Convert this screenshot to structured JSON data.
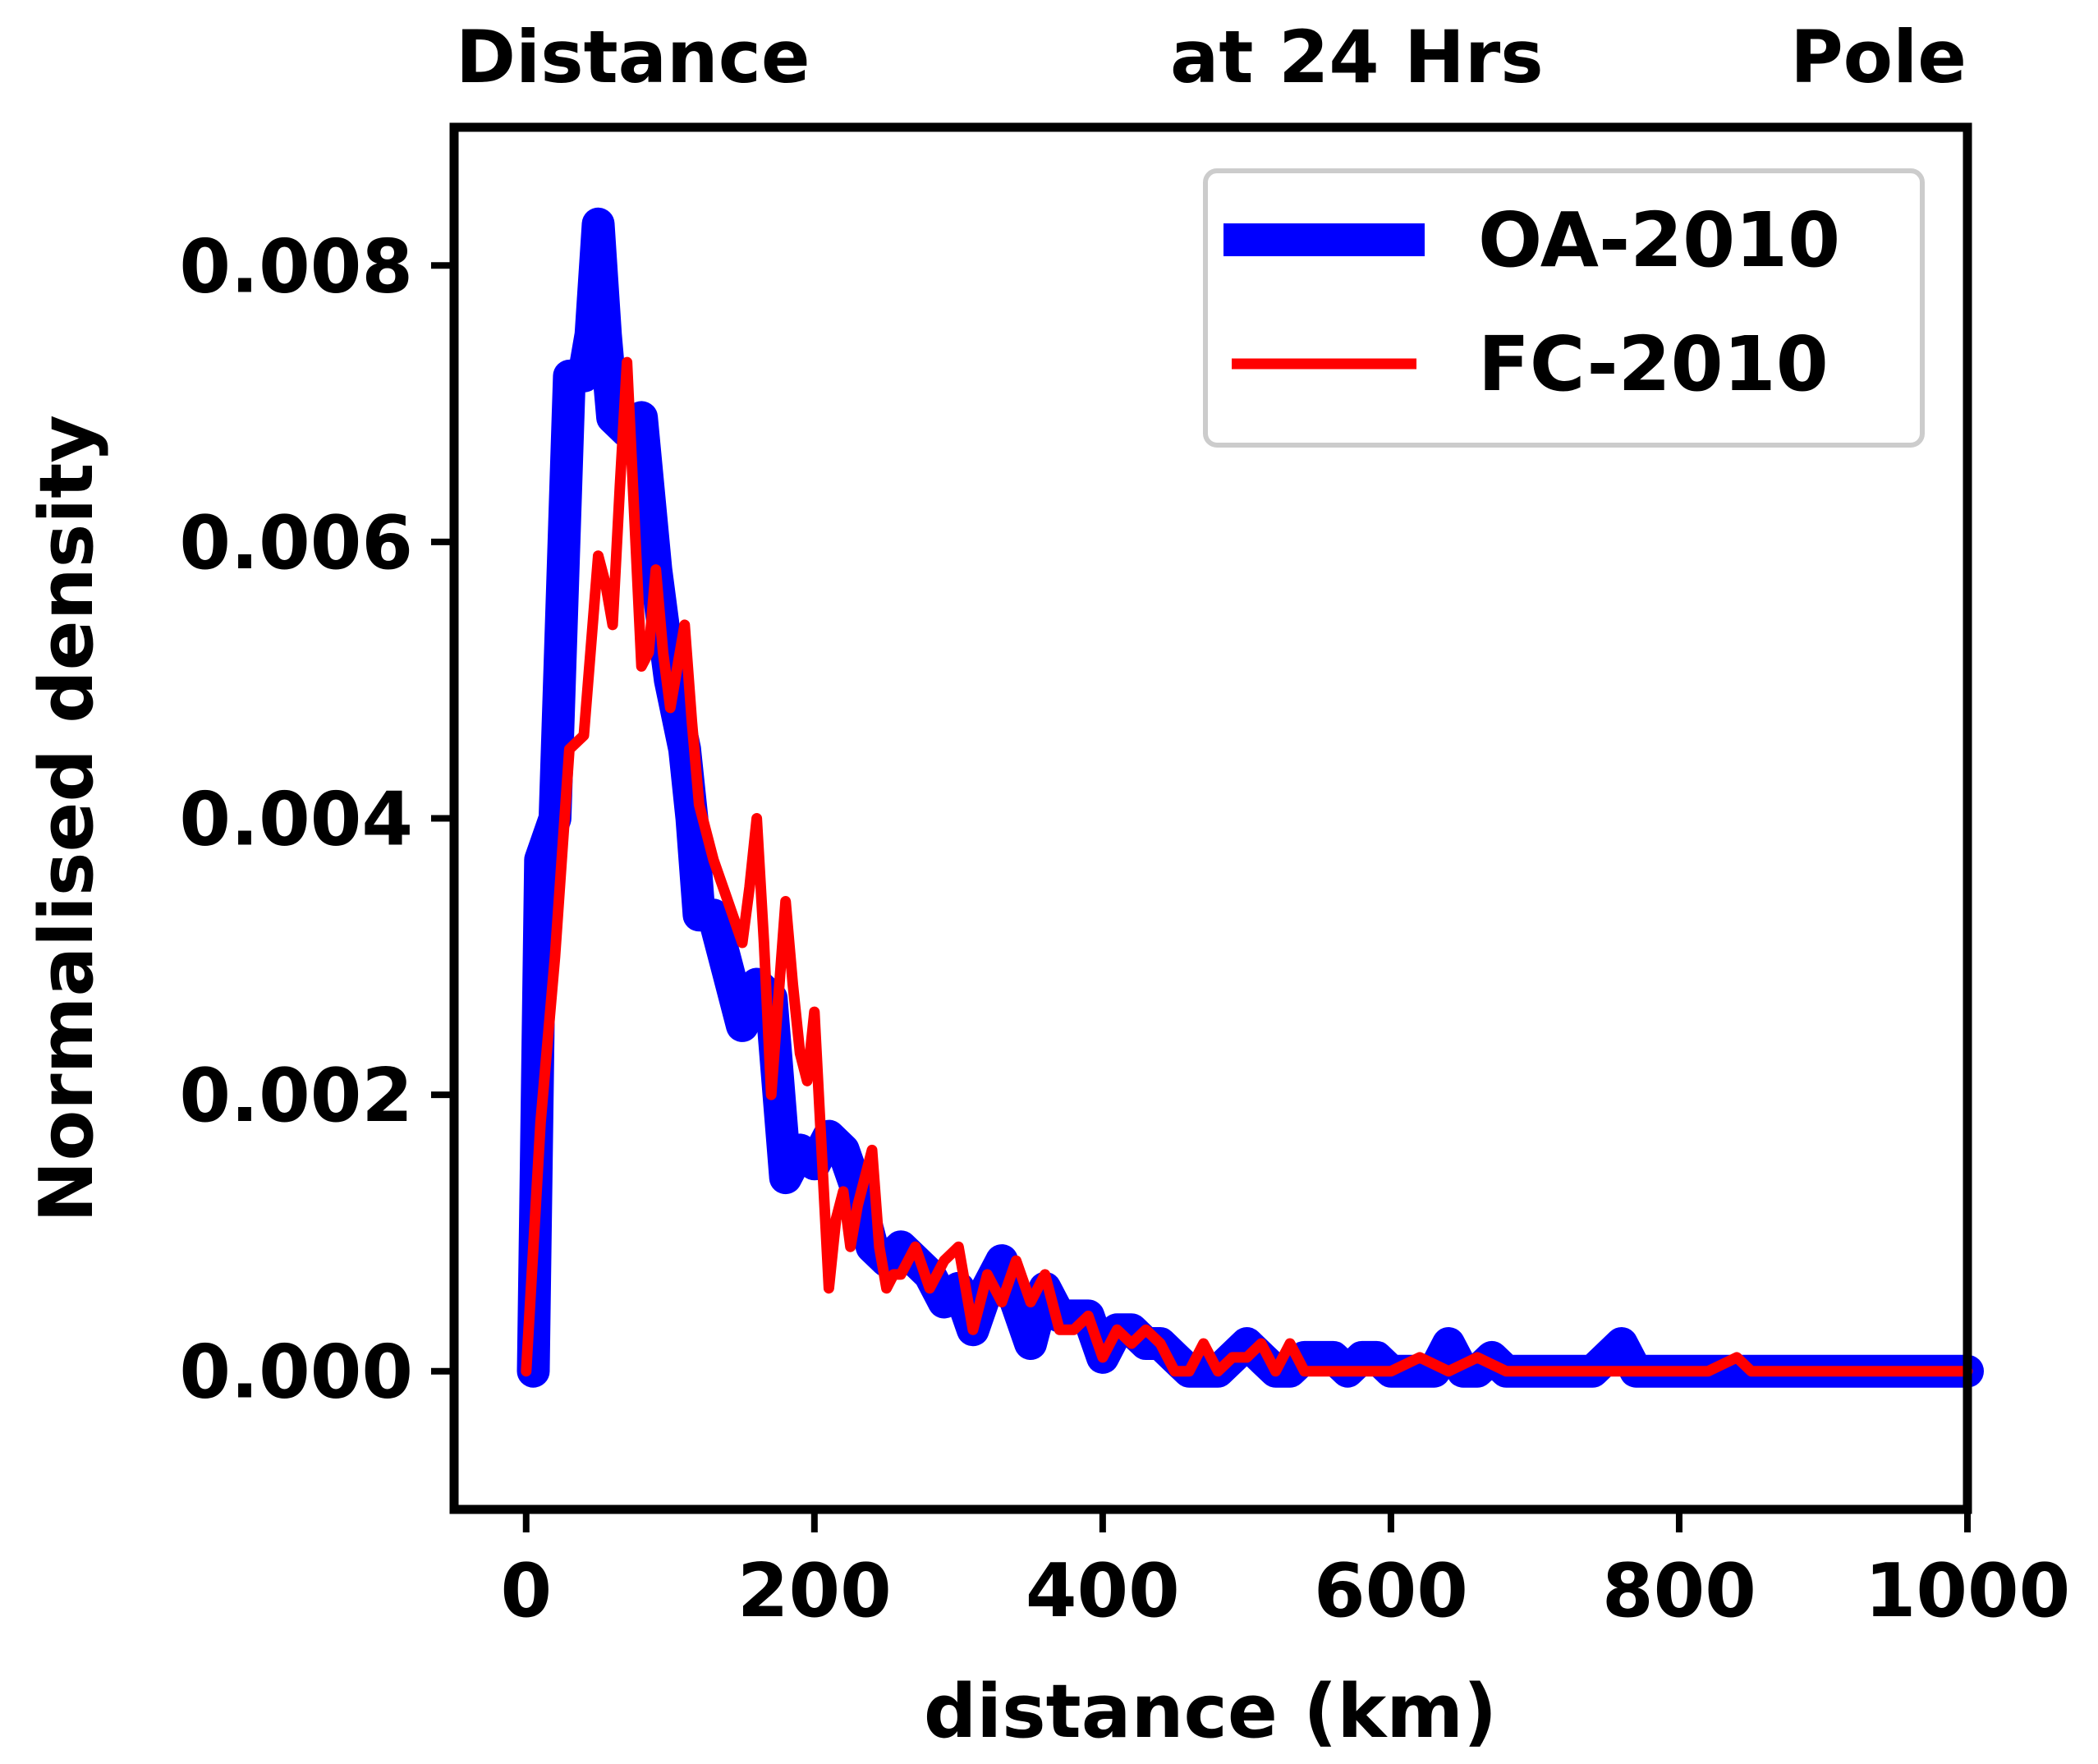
{
  "chart_data": {
    "type": "line",
    "title_parts": [
      "Distance",
      "at 24 Hrs",
      "Pole"
    ],
    "xlabel": "distance (km)",
    "ylabel": "Normalised density",
    "xlim": [
      -50,
      1000
    ],
    "ylim": [
      -0.001,
      0.009
    ],
    "xticks": [
      0,
      200,
      400,
      600,
      800,
      1000
    ],
    "xtick_labels": [
      "0",
      "200",
      "400",
      "600",
      "800",
      "1000"
    ],
    "yticks": [
      0.0,
      0.002,
      0.004,
      0.006,
      0.008
    ],
    "ytick_labels": [
      "0.000",
      "0.002",
      "0.004",
      "0.006",
      "0.008"
    ],
    "legend_position": "top-right",
    "series": [
      {
        "name": "OA-2010",
        "color": "#0000ff",
        "style": "thick",
        "x": [
          5,
          10,
          20,
          30,
          40,
          45,
          50,
          55,
          60,
          70,
          80,
          90,
          100,
          110,
          115,
          120,
          130,
          140,
          150,
          160,
          170,
          180,
          190,
          200,
          210,
          220,
          230,
          240,
          250,
          260,
          270,
          280,
          290,
          300,
          310,
          320,
          330,
          340,
          350,
          360,
          370,
          380,
          390,
          400,
          410,
          420,
          430,
          440,
          450,
          460,
          470,
          480,
          490,
          500,
          510,
          520,
          530,
          540,
          550,
          560,
          570,
          580,
          590,
          600,
          610,
          620,
          630,
          640,
          650,
          660,
          670,
          680,
          690,
          700,
          720,
          740,
          760,
          770,
          780,
          800,
          850,
          900,
          950,
          1000
        ],
        "y": [
          0.0,
          0.0037,
          0.004,
          0.0072,
          0.0072,
          0.0075,
          0.0083,
          0.0075,
          0.0069,
          0.0068,
          0.0069,
          0.0058,
          0.005,
          0.0045,
          0.004,
          0.0033,
          0.0033,
          0.0029,
          0.0025,
          0.0028,
          0.0027,
          0.0014,
          0.0016,
          0.0015,
          0.0017,
          0.0016,
          0.0013,
          0.0009,
          0.0008,
          0.0009,
          0.0008,
          0.0007,
          0.0005,
          0.0006,
          0.0003,
          0.0006,
          0.0008,
          0.0005,
          0.0002,
          0.0006,
          0.0004,
          0.0004,
          0.0004,
          0.0001,
          0.0003,
          0.0003,
          0.0002,
          0.0002,
          0.0001,
          0.0,
          0.0,
          0.0,
          0.0001,
          0.0002,
          0.0001,
          0.0,
          0.0,
          0.0001,
          0.0001,
          0.0001,
          0.0,
          0.0001,
          0.0001,
          0.0,
          0.0,
          0.0,
          0.0,
          0.0002,
          0.0,
          0.0,
          0.0001,
          0.0,
          0.0,
          0.0,
          0.0,
          0.0,
          0.0002,
          0.0,
          0.0,
          0.0,
          0.0,
          0.0,
          0.0,
          0.0
        ]
      },
      {
        "name": "FC-2010",
        "color": "#ff0000",
        "style": "thin",
        "x": [
          0,
          10,
          20,
          30,
          40,
          50,
          55,
          60,
          65,
          70,
          75,
          80,
          85,
          90,
          95,
          100,
          105,
          110,
          115,
          120,
          130,
          140,
          150,
          155,
          160,
          165,
          170,
          175,
          180,
          185,
          190,
          195,
          200,
          210,
          215,
          220,
          225,
          230,
          240,
          245,
          250,
          255,
          260,
          270,
          280,
          290,
          300,
          310,
          320,
          330,
          340,
          350,
          360,
          370,
          380,
          390,
          400,
          410,
          420,
          430,
          440,
          450,
          460,
          470,
          480,
          490,
          500,
          510,
          520,
          530,
          540,
          550,
          560,
          600,
          620,
          640,
          660,
          680,
          700,
          720,
          760,
          780,
          820,
          840,
          850,
          900,
          1000
        ],
        "y": [
          0.0,
          0.0018,
          0.003,
          0.0045,
          0.0046,
          0.0059,
          0.0057,
          0.0054,
          0.0064,
          0.0073,
          0.0062,
          0.0051,
          0.0052,
          0.0058,
          0.0052,
          0.0048,
          0.0051,
          0.0054,
          0.0047,
          0.0041,
          0.0037,
          0.0034,
          0.0031,
          0.0035,
          0.004,
          0.0031,
          0.002,
          0.0027,
          0.0034,
          0.0028,
          0.0023,
          0.0021,
          0.0026,
          0.0006,
          0.0011,
          0.0013,
          0.0009,
          0.0012,
          0.0016,
          0.0009,
          0.0006,
          0.0007,
          0.0007,
          0.0009,
          0.0006,
          0.0008,
          0.0009,
          0.0003,
          0.0007,
          0.0005,
          0.0008,
          0.0005,
          0.0007,
          0.0003,
          0.0003,
          0.0004,
          0.0001,
          0.0003,
          0.0002,
          0.0003,
          0.0002,
          0.0,
          0.0,
          0.0002,
          0.0,
          0.0001,
          0.0001,
          0.0002,
          0.0,
          0.0002,
          0.0,
          0.0,
          0.0,
          0.0,
          0.0001,
          0.0,
          0.0001,
          0.0,
          0.0,
          0.0,
          0.0,
          0.0,
          0.0,
          0.0001,
          0.0,
          0.0,
          0.0
        ]
      }
    ]
  }
}
